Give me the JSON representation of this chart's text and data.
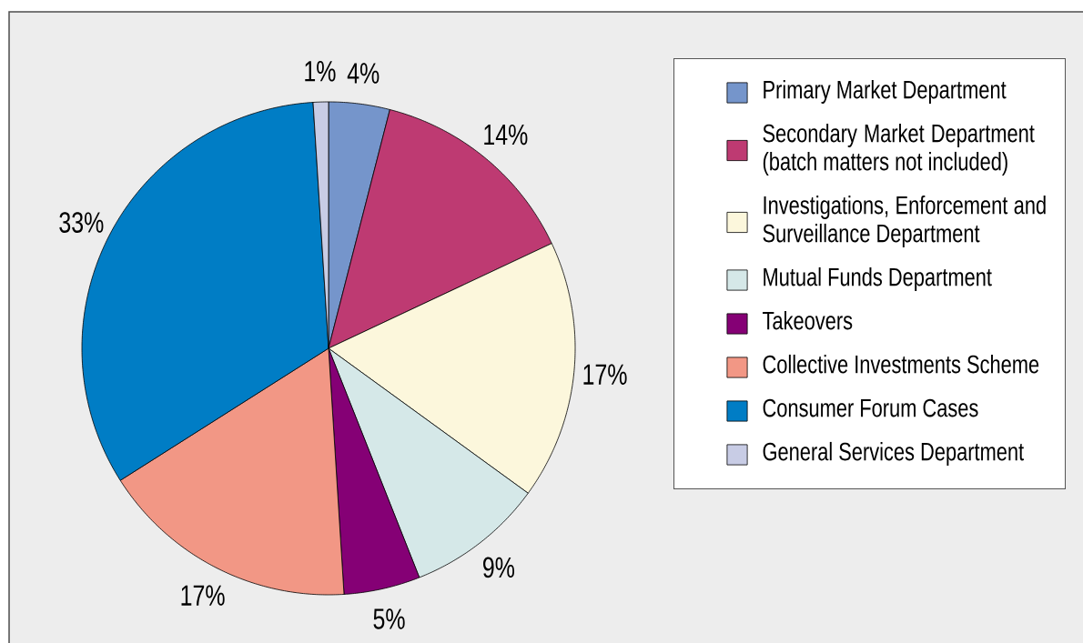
{
  "chart_data": {
    "type": "pie",
    "categories": [
      "Primary Market Department",
      "Secondary Market Department (batch matters not included)",
      "Investigations, Enforcement and Surveillance Department",
      "Mutual Funds Department",
      "Takeovers",
      "Collective Investments Scheme",
      "Consumer Forum Cases",
      "General Services Department"
    ],
    "values": [
      4,
      14,
      17,
      9,
      5,
      17,
      33,
      1
    ],
    "colors": [
      "#7595cb",
      "#be3a72",
      "#fcf7dc",
      "#d5e8e8",
      "#850075",
      "#f29785",
      "#007dc5",
      "#c8cce5"
    ],
    "value_labels": [
      "4%",
      "14%",
      "17%",
      "9%",
      "5%",
      "17%",
      "33%",
      "1%"
    ],
    "legend": "right"
  }
}
